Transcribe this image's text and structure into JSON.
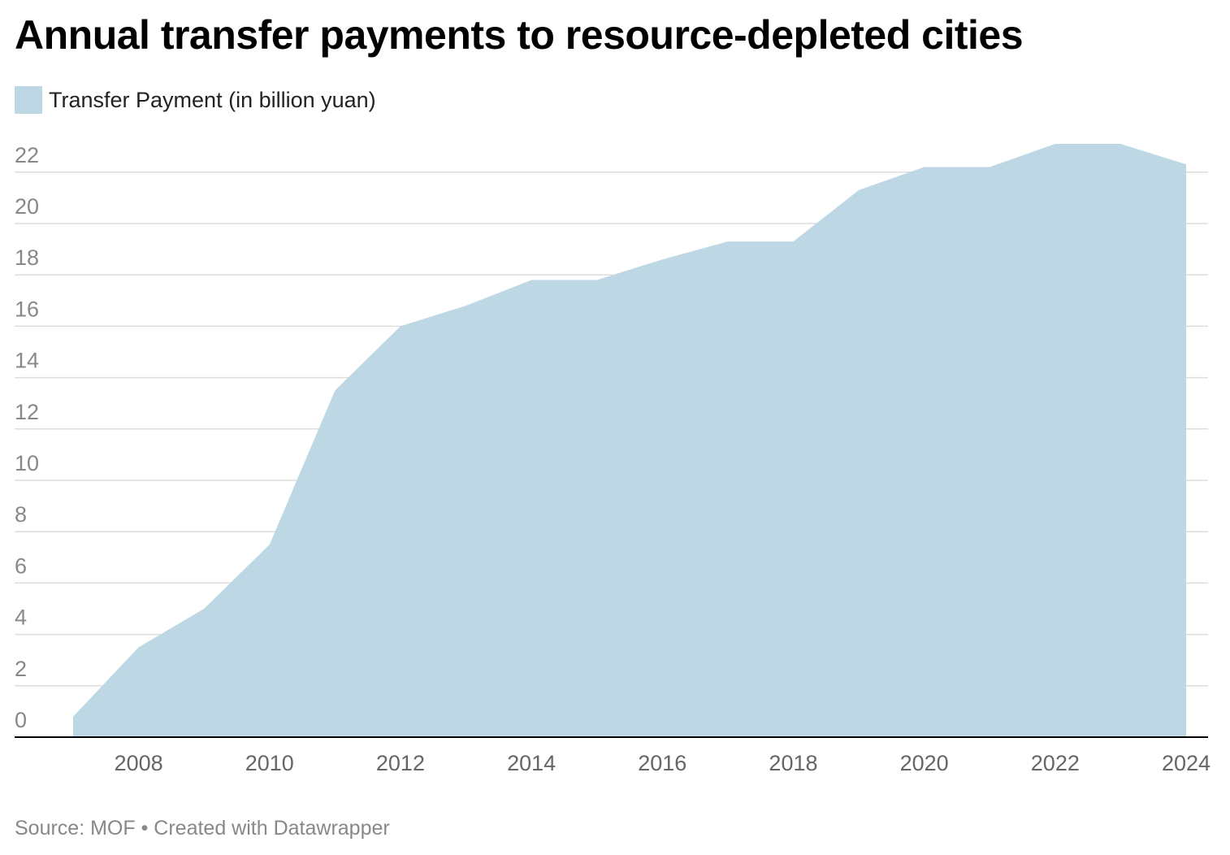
{
  "header": {
    "title": "Annual transfer payments to resource-depleted cities"
  },
  "legend": {
    "label": "Transfer Payment (in billion yuan)",
    "swatch_color": "#bdd8e4"
  },
  "footer": {
    "source": "Source: MOF • Created with Datawrapper"
  },
  "chart_data": {
    "type": "area",
    "title": "Annual transfer payments to resource-depleted cities",
    "xlabel": "",
    "ylabel": "",
    "series": [
      {
        "name": "Transfer Payment (in billion yuan)",
        "color": "#bdd8e4",
        "x": [
          2007,
          2008,
          2009,
          2010,
          2011,
          2012,
          2013,
          2014,
          2015,
          2016,
          2017,
          2018,
          2019,
          2020,
          2021,
          2022,
          2023,
          2024
        ],
        "values": [
          0.8,
          3.5,
          5.0,
          7.5,
          13.5,
          16.0,
          16.8,
          17.8,
          17.8,
          18.6,
          19.3,
          19.3,
          21.3,
          22.2,
          22.2,
          23.1,
          23.1,
          22.3
        ]
      }
    ],
    "ylim": [
      0,
      23
    ],
    "xlim": [
      2007,
      2024
    ],
    "y_ticks": [
      "0",
      "2",
      "4",
      "6",
      "8",
      "10",
      "12",
      "14",
      "16",
      "18",
      "20",
      "22"
    ],
    "x_ticks": [
      "2008",
      "2010",
      "2012",
      "2014",
      "2016",
      "2018",
      "2020",
      "2022",
      "2024"
    ],
    "grid": true,
    "grid_color": "#dddddd",
    "axis_color": "#000000",
    "tick_label_color": "#888888",
    "x_tick_label_color": "#666666",
    "legend_position": "top-left"
  }
}
